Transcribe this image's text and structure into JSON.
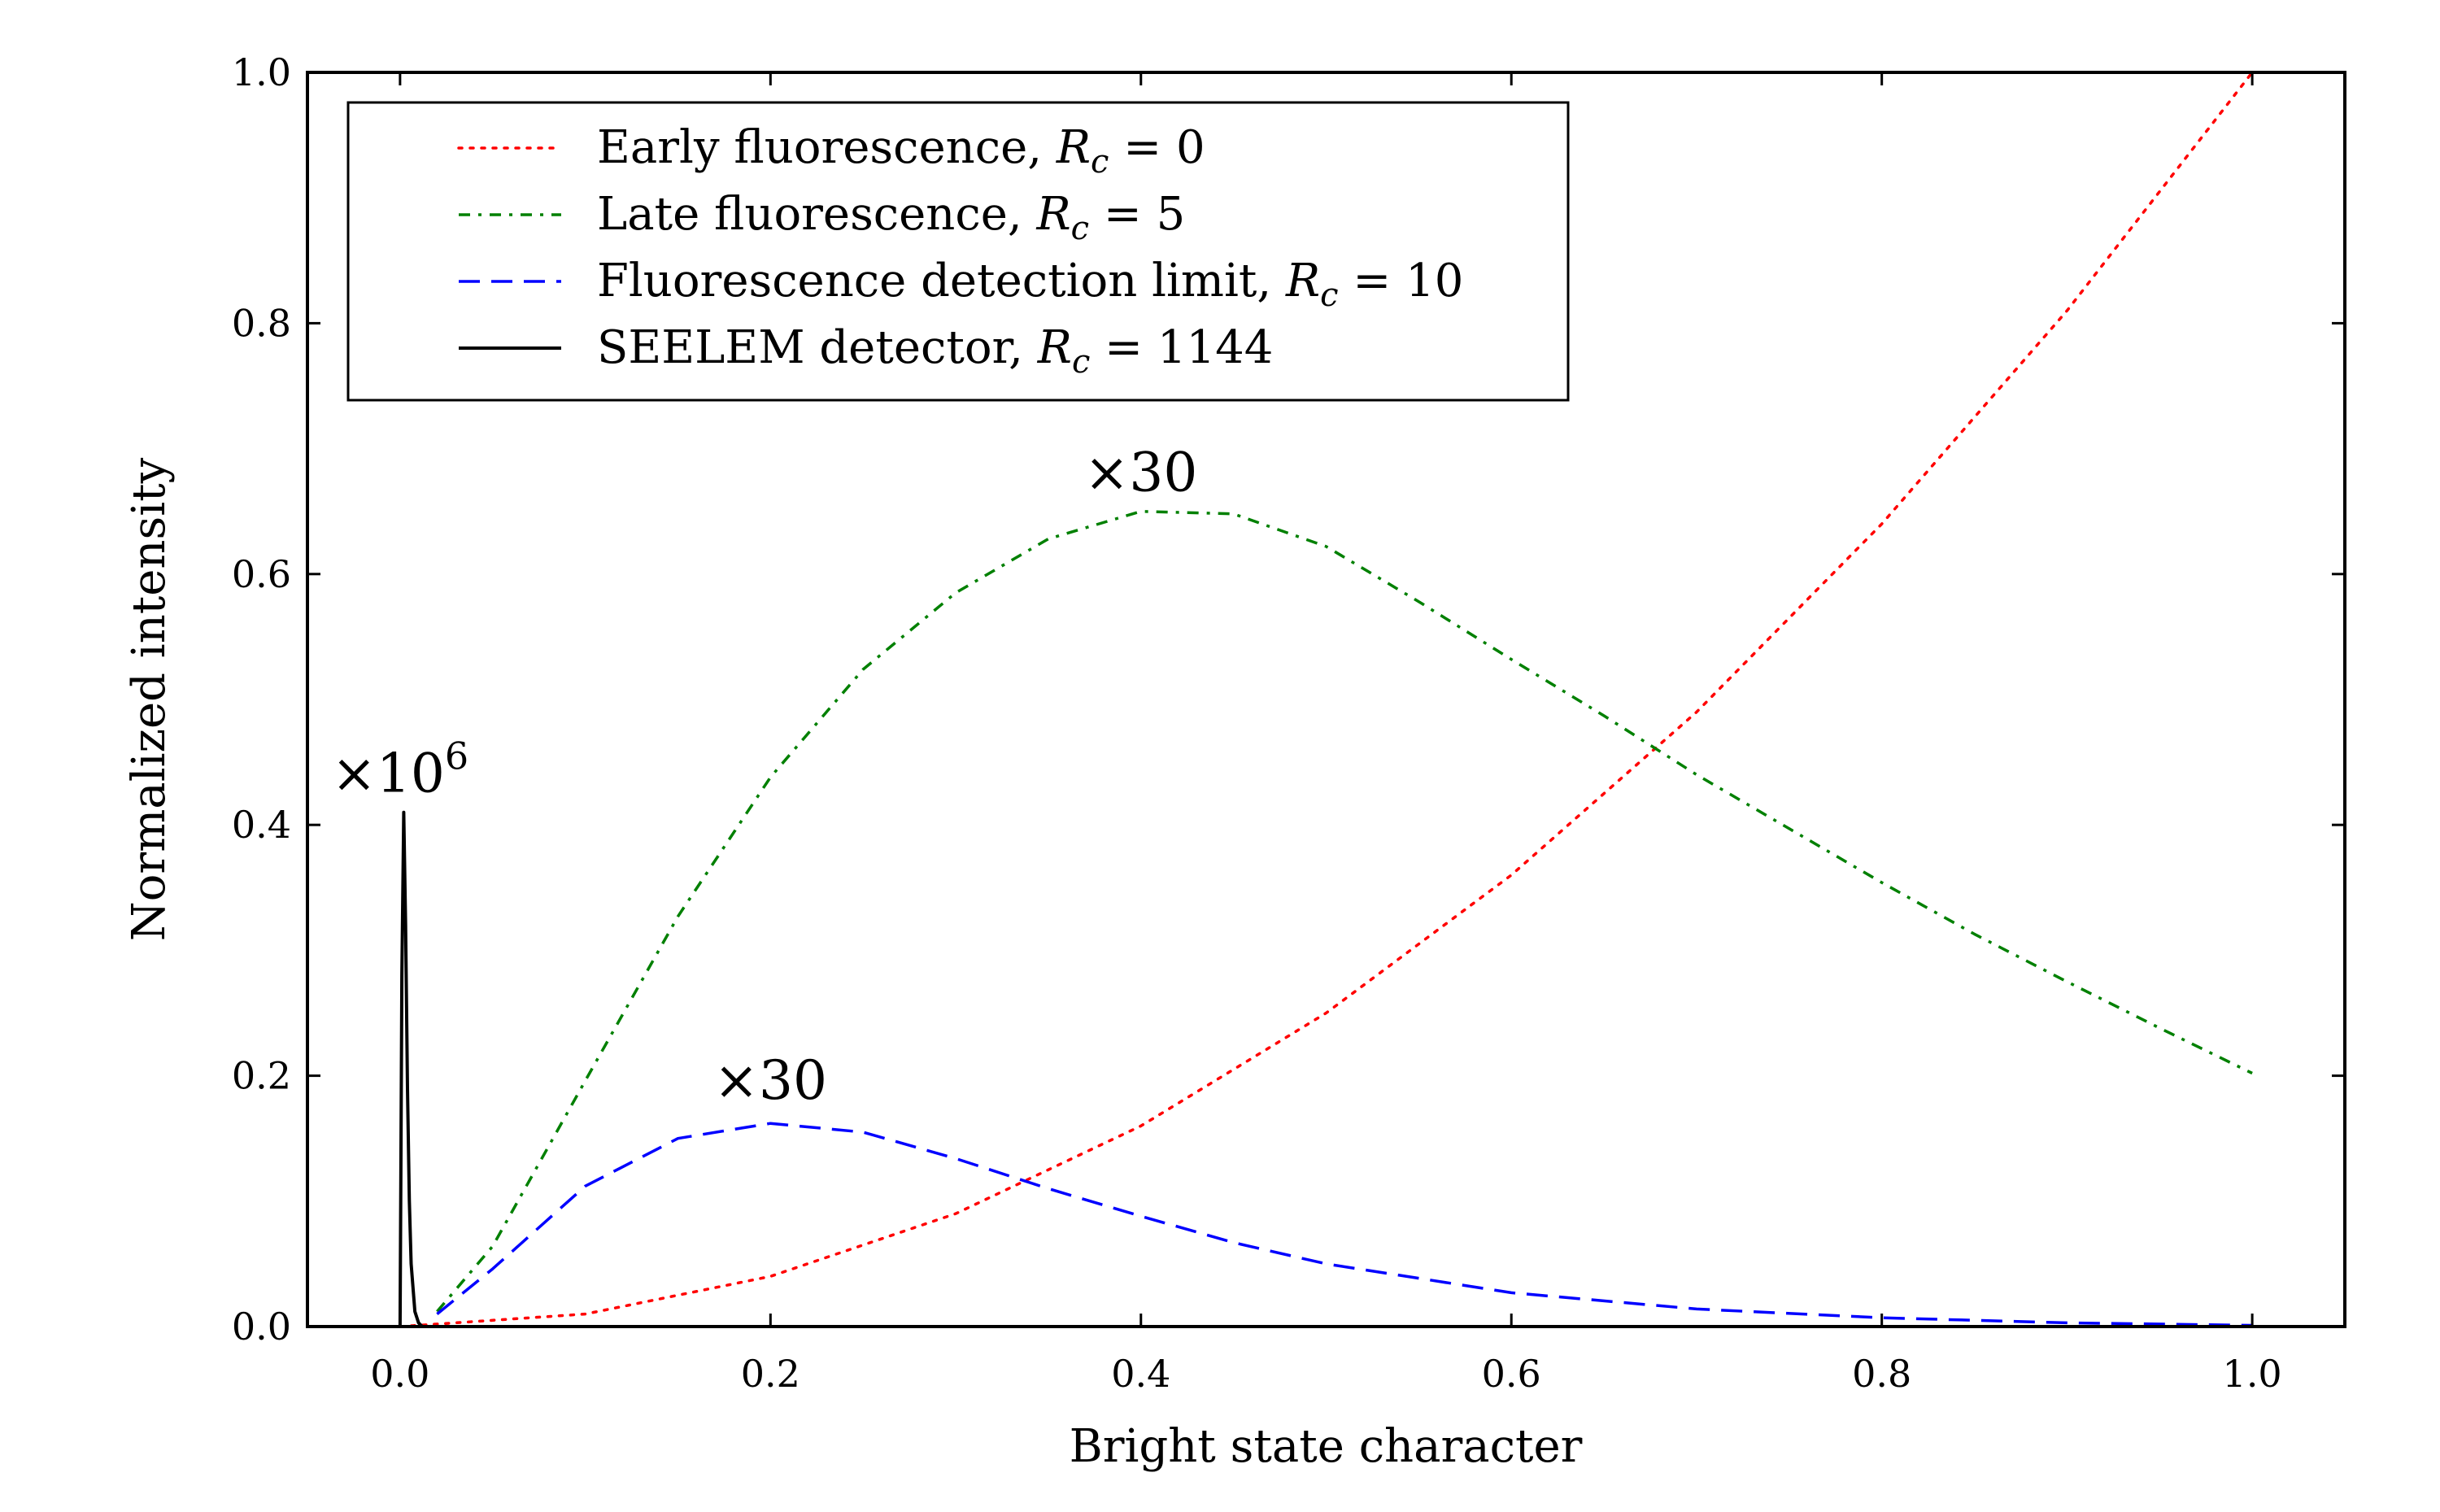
{
  "chart_data": {
    "type": "line",
    "xlabel": "Bright state character",
    "ylabel": "Normalized intensity",
    "xlim": [
      -0.05,
      1.05
    ],
    "ylim": [
      0.0,
      1.0
    ],
    "x_ticks": [
      "0.0",
      "0.2",
      "0.4",
      "0.6",
      "0.8",
      "1.0"
    ],
    "y_ticks": [
      "0.0",
      "0.2",
      "0.4",
      "0.6",
      "0.8",
      "1.0"
    ],
    "grid": false,
    "legend_position": "top-left",
    "series": [
      {
        "name": "Early fluorescence, ",
        "math": {
          "var": "R",
          "sub": "c",
          "value": "= 0"
        },
        "color": "#ff0000",
        "style": "dotted",
        "x": [
          0.0,
          0.1,
          0.2,
          0.3,
          0.4,
          0.5,
          0.6,
          0.7,
          0.8,
          0.9,
          1.0
        ],
        "y": [
          0.0,
          0.01,
          0.04,
          0.09,
          0.16,
          0.25,
          0.36,
          0.49,
          0.64,
          0.81,
          1.0
        ]
      },
      {
        "name": "Late fluorescence, ",
        "math": {
          "var": "R",
          "sub": "c",
          "value": "= 5"
        },
        "color": "#008000",
        "style": "dashdot",
        "x": [
          0.02,
          0.05,
          0.1,
          0.15,
          0.2,
          0.25,
          0.3,
          0.35,
          0.4,
          0.45,
          0.5,
          0.55,
          0.6,
          0.65,
          0.7,
          0.75,
          0.8,
          0.85,
          0.9,
          0.95,
          1.0
        ],
        "y": [
          0.012,
          0.064,
          0.196,
          0.327,
          0.438,
          0.524,
          0.585,
          0.628,
          0.65,
          0.648,
          0.622,
          0.578,
          0.532,
          0.487,
          0.44,
          0.397,
          0.354,
          0.313,
          0.275,
          0.238,
          0.202
        ]
      },
      {
        "name": "Fluorescence detection limit, ",
        "math": {
          "var": "R",
          "sub": "c",
          "value": "= 10"
        },
        "color": "#0000ff",
        "style": "dashed",
        "x": [
          0.02,
          0.05,
          0.1,
          0.15,
          0.2,
          0.25,
          0.3,
          0.35,
          0.4,
          0.45,
          0.5,
          0.6,
          0.7,
          0.8,
          0.9,
          1.0
        ],
        "y": [
          0.01,
          0.046,
          0.112,
          0.15,
          0.162,
          0.155,
          0.134,
          0.11,
          0.088,
          0.067,
          0.05,
          0.027,
          0.014,
          0.007,
          0.003,
          0.001
        ]
      },
      {
        "name": "SEELEM detector, ",
        "math": {
          "var": "R",
          "sub": "c",
          "value": "= 1144"
        },
        "color": "#000000",
        "style": "solid",
        "x": [
          0.0,
          0.001,
          0.002,
          0.003,
          0.004,
          0.005,
          0.006,
          0.008,
          0.01,
          0.012
        ],
        "y": [
          0.0,
          0.28,
          0.41,
          0.32,
          0.19,
          0.1,
          0.05,
          0.012,
          0.003,
          0.0
        ]
      }
    ],
    "annotations": [
      {
        "text": "×30",
        "x": 0.4,
        "y": 0.66
      },
      {
        "text": "×30",
        "x": 0.2,
        "y": 0.175
      },
      {
        "text": "×10",
        "sup": "6",
        "x": 0.0,
        "y": 0.42
      }
    ]
  }
}
